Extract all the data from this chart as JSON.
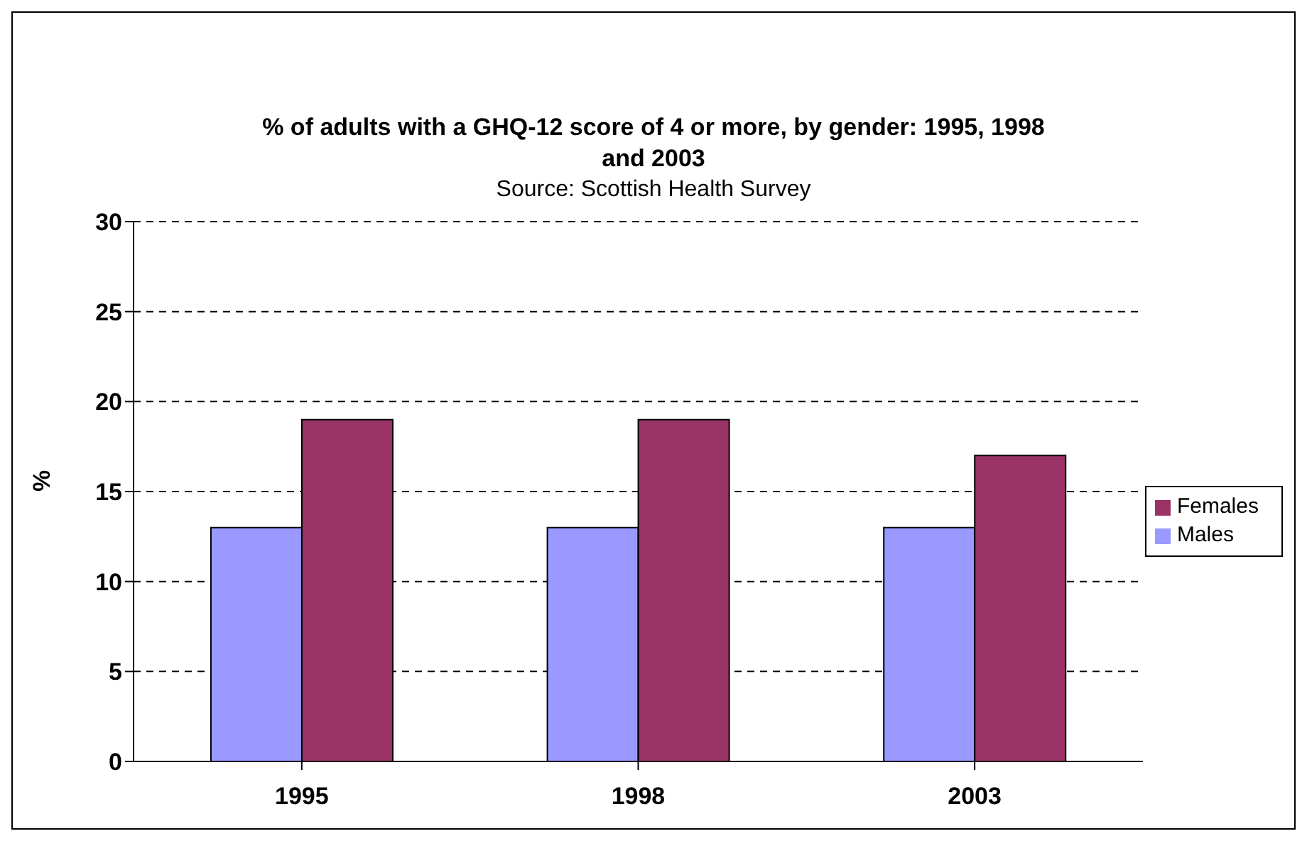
{
  "chart_data": {
    "type": "bar",
    "title": "% of adults with a GHQ-12 score of 4 or more, by gender: 1995, 1998 and 2003",
    "subtitle": "Source: Scottish Health Survey",
    "ylabel": "%",
    "categories": [
      "1995",
      "1998",
      "2003"
    ],
    "series": [
      {
        "name": "Males",
        "color": "#9999ff",
        "values": [
          13,
          13,
          13
        ]
      },
      {
        "name": "Females",
        "color": "#993366",
        "values": [
          19,
          19,
          17
        ]
      }
    ],
    "ylim": [
      0,
      30
    ],
    "yticks": [
      0,
      5,
      10,
      15,
      20,
      25,
      30
    ],
    "grid": "y",
    "legend": "right"
  }
}
